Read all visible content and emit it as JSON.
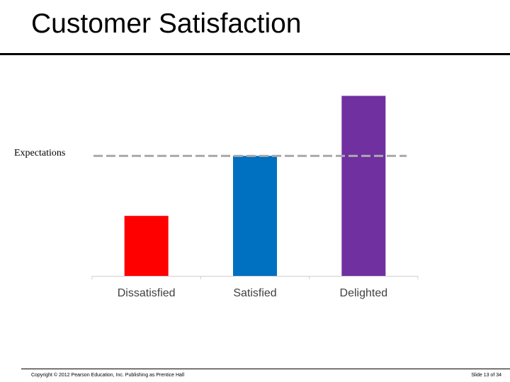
{
  "slide": {
    "title": "Customer Satisfaction",
    "copyright": "Copyright © 2012 Pearson Education, Inc. Publishing as Prentice Hall",
    "slide_number": "Slide 13 of 34"
  },
  "chart_data": {
    "type": "bar",
    "title": "",
    "xlabel": "",
    "ylabel": "",
    "categories": [
      "Dissatisfied",
      "Satisfied",
      "Delighted"
    ],
    "values": [
      2,
      4,
      6
    ],
    "colors": [
      "#ff0000",
      "#0070c0",
      "#7030a0"
    ],
    "ylim": [
      0,
      6.2
    ],
    "reference_line": {
      "label": "Expectations",
      "value": 4,
      "style": "dashed",
      "color": "#aaaaaa"
    },
    "grid": false,
    "legend": "none"
  }
}
